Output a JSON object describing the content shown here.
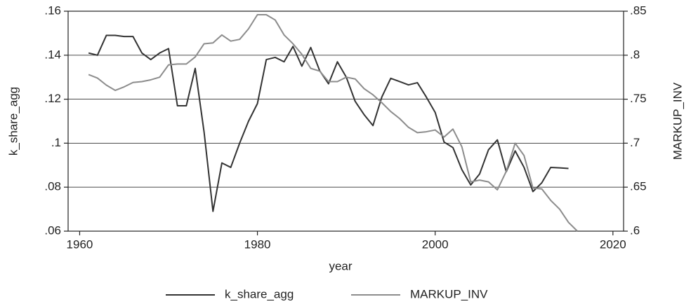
{
  "chart_data": {
    "type": "line",
    "x_label": "year",
    "y_label": "k_share_agg",
    "y2_label": "MARKUP_INV",
    "x": [
      1961,
      1962,
      1963,
      1964,
      1965,
      1966,
      1967,
      1968,
      1969,
      1970,
      1971,
      1972,
      1973,
      1974,
      1975,
      1976,
      1977,
      1978,
      1979,
      1980,
      1981,
      1982,
      1983,
      1984,
      1985,
      1986,
      1987,
      1988,
      1989,
      1990,
      1991,
      1992,
      1993,
      1994,
      1995,
      1996,
      1997,
      1998,
      1999,
      2000,
      2001,
      2002,
      2003,
      2004,
      2005,
      2006,
      2007,
      2008,
      2009,
      2010,
      2011,
      2012,
      2013,
      2014,
      2015,
      2016
    ],
    "series": [
      {
        "name": "k_share_agg",
        "color": "#333333",
        "axis": "y",
        "values": [
          0.141,
          0.14,
          0.149,
          0.149,
          0.1485,
          0.1485,
          0.141,
          0.138,
          0.141,
          0.143,
          0.117,
          0.117,
          0.134,
          0.105,
          0.069,
          0.091,
          0.089,
          0.1,
          0.11,
          0.118,
          0.138,
          0.139,
          0.137,
          0.144,
          0.135,
          0.1435,
          0.133,
          0.127,
          0.137,
          0.13,
          0.119,
          0.113,
          0.108,
          0.121,
          0.1295,
          0.128,
          0.1265,
          0.1275,
          0.121,
          0.114,
          0.1005,
          0.098,
          0.088,
          0.081,
          0.086,
          0.097,
          0.1015,
          0.087,
          0.0965,
          0.089,
          0.078,
          0.082,
          0.089,
          0.0888,
          0.0885,
          null
        ]
      },
      {
        "name": "MARKUP_INV",
        "color": "#8c8c8c",
        "axis": "y2",
        "values": [
          0.778,
          0.774,
          0.766,
          0.76,
          0.764,
          0.769,
          0.77,
          0.772,
          0.775,
          0.789,
          0.79,
          0.79,
          0.798,
          0.813,
          0.814,
          0.823,
          0.816,
          0.818,
          0.83,
          0.846,
          0.846,
          0.84,
          0.823,
          0.813,
          0.801,
          0.785,
          0.782,
          0.77,
          0.77,
          0.775,
          0.773,
          0.762,
          0.755,
          0.746,
          0.736,
          0.728,
          0.718,
          0.712,
          0.713,
          0.715,
          0.707,
          0.716,
          0.696,
          0.656,
          0.658,
          0.656,
          0.647,
          0.668,
          0.7,
          0.686,
          0.649,
          0.648,
          0.635,
          0.625,
          0.61,
          0.6
        ]
      }
    ],
    "xlim": [
      1958.7,
      2021.2
    ],
    "xticks": [
      1960,
      1980,
      2000,
      2020
    ],
    "ylim": [
      0.06,
      0.16
    ],
    "yticks": [
      {
        "value": 0.06,
        "label": ".06"
      },
      {
        "value": 0.08,
        "label": ".08"
      },
      {
        "value": 0.1,
        "label": ".1"
      },
      {
        "value": 0.12,
        "label": ".12"
      },
      {
        "value": 0.14,
        "label": ".14"
      },
      {
        "value": 0.16,
        "label": ".16"
      }
    ],
    "y2lim": [
      0.6,
      0.85
    ],
    "y2ticks": [
      {
        "value": 0.6,
        "label": ".6"
      },
      {
        "value": 0.65,
        "label": ".65"
      },
      {
        "value": 0.7,
        "label": ".7"
      },
      {
        "value": 0.75,
        "label": ".75"
      },
      {
        "value": 0.8,
        "label": ".8"
      },
      {
        "value": 0.85,
        "label": ".85"
      }
    ],
    "grid": true,
    "legend": "bottom"
  }
}
